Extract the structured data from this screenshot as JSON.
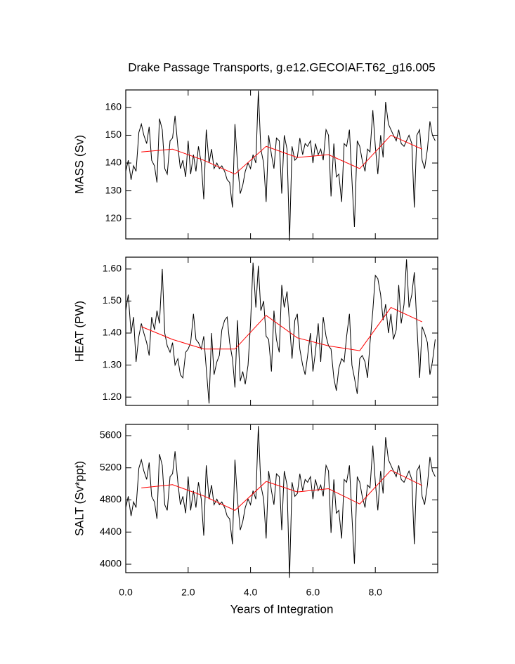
{
  "chart_data": [
    {
      "type": "line",
      "title": "Drake Passage Transports, g.e12.GECOIAF.T62_g16.005",
      "ylabel": "MASS (Sv)",
      "ylim": [
        112.7,
        166.3
      ],
      "yticks": [
        120,
        130,
        140,
        150,
        160
      ],
      "series": [
        {
          "color": "#000000",
          "x": [
            0,
            0.08,
            0.17,
            0.25,
            0.33,
            0.42,
            0.5,
            0.58,
            0.67,
            0.75,
            0.83,
            0.92,
            1,
            1.08,
            1.17,
            1.25,
            1.33,
            1.42,
            1.5,
            1.58,
            1.67,
            1.75,
            1.83,
            1.92,
            2,
            2.08,
            2.17,
            2.25,
            2.33,
            2.42,
            2.5,
            2.58,
            2.67,
            2.75,
            2.83,
            2.92,
            3,
            3.08,
            3.17,
            3.25,
            3.33,
            3.42,
            3.5,
            3.58,
            3.67,
            3.75,
            3.83,
            3.92,
            4,
            4.08,
            4.17,
            4.25,
            4.33,
            4.42,
            4.5,
            4.58,
            4.67,
            4.75,
            4.83,
            4.92,
            5,
            5.08,
            5.17,
            5.25,
            5.33,
            5.42,
            5.5,
            5.58,
            5.67,
            5.75,
            5.83,
            5.92,
            6,
            6.08,
            6.17,
            6.25,
            6.33,
            6.42,
            6.5,
            6.58,
            6.67,
            6.75,
            6.83,
            6.92,
            7,
            7.08,
            7.17,
            7.25,
            7.33,
            7.42,
            7.5,
            7.58,
            7.67,
            7.75,
            7.83,
            7.92,
            8,
            8.08,
            8.17,
            8.25,
            8.33,
            8.42,
            8.5,
            8.58,
            8.67,
            8.75,
            8.83,
            8.92,
            9,
            9.08,
            9.17,
            9.25,
            9.33,
            9.42,
            9.5,
            9.58,
            9.67,
            9.75,
            9.83,
            9.92
          ],
          "values": [
            137,
            141,
            134,
            139,
            137,
            151,
            154,
            150,
            147,
            153,
            141,
            139,
            133,
            156,
            152,
            138,
            136,
            148,
            149,
            157,
            146,
            138,
            141,
            135,
            148,
            136,
            143,
            137,
            146,
            140,
            127,
            152,
            140,
            145,
            138,
            140,
            138,
            139,
            137,
            134,
            133,
            124,
            154,
            140,
            129,
            132,
            137,
            140,
            138,
            143,
            140,
            166,
            145,
            140,
            126,
            150,
            143,
            138,
            149,
            148,
            129,
            150,
            145,
            112,
            146,
            141,
            142,
            149,
            143,
            147,
            146,
            148,
            140,
            147,
            143,
            145,
            141,
            152,
            150,
            128,
            147,
            135,
            136,
            126,
            147,
            146,
            152,
            134,
            117,
            148,
            146,
            141,
            137,
            145,
            144,
            159,
            146,
            136,
            150,
            142,
            162,
            154,
            152,
            150,
            148,
            152,
            147,
            146,
            148,
            150,
            147,
            124,
            150,
            152,
            141,
            138,
            145,
            155,
            150,
            148
          ]
        },
        {
          "color": "#ff0000",
          "x": [
            0.5,
            1.5,
            2.5,
            3.5,
            4.5,
            5.5,
            6.5,
            7.5,
            8.5,
            9.5
          ],
          "values": [
            144,
            145,
            141,
            136,
            146,
            142,
            143,
            138,
            150,
            145
          ]
        }
      ]
    },
    {
      "type": "line",
      "ylabel": "HEAT (PW)",
      "ylim": [
        1.174,
        1.637
      ],
      "yticks": [
        {
          "value": 1.2,
          "label": "1.20"
        },
        {
          "value": 1.3,
          "label": "1.30"
        },
        {
          "value": 1.4,
          "label": "1.40"
        },
        {
          "value": 1.5,
          "label": "1.50"
        },
        {
          "value": 1.6,
          "label": "1.60"
        }
      ],
      "series": [
        {
          "color": "#000000",
          "x": [
            0,
            0.08,
            0.17,
            0.25,
            0.33,
            0.42,
            0.5,
            0.58,
            0.67,
            0.75,
            0.83,
            0.92,
            1,
            1.08,
            1.17,
            1.25,
            1.33,
            1.42,
            1.5,
            1.58,
            1.67,
            1.75,
            1.83,
            1.92,
            2,
            2.08,
            2.17,
            2.25,
            2.33,
            2.42,
            2.5,
            2.58,
            2.67,
            2.75,
            2.83,
            2.92,
            3,
            3.08,
            3.17,
            3.25,
            3.33,
            3.42,
            3.5,
            3.58,
            3.67,
            3.75,
            3.83,
            3.92,
            4,
            4.08,
            4.17,
            4.25,
            4.33,
            4.42,
            4.5,
            4.58,
            4.67,
            4.75,
            4.83,
            4.92,
            5,
            5.08,
            5.17,
            5.25,
            5.33,
            5.42,
            5.5,
            5.58,
            5.67,
            5.75,
            5.83,
            5.92,
            6,
            6.08,
            6.17,
            6.25,
            6.33,
            6.42,
            6.5,
            6.58,
            6.67,
            6.75,
            6.83,
            6.92,
            7,
            7.08,
            7.17,
            7.25,
            7.33,
            7.42,
            7.5,
            7.58,
            7.67,
            7.75,
            7.83,
            7.92,
            8,
            8.08,
            8.17,
            8.25,
            8.33,
            8.42,
            8.5,
            8.58,
            8.67,
            8.75,
            8.83,
            8.92,
            9,
            9.08,
            9.17,
            9.25,
            9.33,
            9.42,
            9.5,
            9.58,
            9.67,
            9.75,
            9.83,
            9.92
          ],
          "values": [
            1.47,
            1.52,
            1.4,
            1.45,
            1.31,
            1.39,
            1.43,
            1.4,
            1.37,
            1.33,
            1.45,
            1.41,
            1.47,
            1.43,
            1.6,
            1.4,
            1.36,
            1.34,
            1.37,
            1.3,
            1.32,
            1.27,
            1.26,
            1.34,
            1.35,
            1.37,
            1.46,
            1.38,
            1.37,
            1.35,
            1.39,
            1.29,
            1.18,
            1.4,
            1.27,
            1.31,
            1.33,
            1.41,
            1.44,
            1.45,
            1.37,
            1.32,
            1.23,
            1.44,
            1.25,
            1.28,
            1.24,
            1.3,
            1.43,
            1.62,
            1.48,
            1.61,
            1.47,
            1.5,
            1.39,
            1.38,
            1.28,
            1.47,
            1.38,
            1.34,
            1.55,
            1.48,
            1.53,
            1.43,
            1.32,
            1.44,
            1.46,
            1.35,
            1.3,
            1.27,
            1.33,
            1.4,
            1.28,
            1.34,
            1.43,
            1.31,
            1.45,
            1.39,
            1.36,
            1.35,
            1.26,
            1.22,
            1.29,
            1.32,
            1.31,
            1.39,
            1.46,
            1.3,
            1.26,
            1.21,
            1.32,
            1.33,
            1.31,
            1.26,
            1.37,
            1.47,
            1.58,
            1.57,
            1.52,
            1.44,
            1.49,
            1.4,
            1.46,
            1.38,
            1.41,
            1.55,
            1.43,
            1.49,
            1.63,
            1.48,
            1.52,
            1.59,
            1.43,
            1.26,
            1.42,
            1.4,
            1.37,
            1.27,
            1.31,
            1.38
          ]
        },
        {
          "color": "#ff0000",
          "x": [
            0.5,
            1.5,
            2.5,
            3.5,
            4.5,
            5.5,
            6.5,
            7.5,
            8.5,
            9.5
          ],
          "values": [
            1.42,
            1.38,
            1.35,
            1.35,
            1.455,
            1.385,
            1.36,
            1.345,
            1.48,
            1.435
          ]
        }
      ]
    },
    {
      "type": "line",
      "ylabel": "SALT (Sv*ppt)",
      "xlabel": "Years of Integration",
      "xlim": [
        0,
        10
      ],
      "xticks": [
        {
          "value": 0,
          "label": "0.0"
        },
        {
          "value": 2,
          "label": "2.0"
        },
        {
          "value": 4,
          "label": "4.0"
        },
        {
          "value": 6,
          "label": "6.0"
        },
        {
          "value": 8,
          "label": "8.0"
        }
      ],
      "ylim": [
        3895,
        5740
      ],
      "yticks": [
        4000,
        4400,
        4800,
        5200,
        5600
      ],
      "series": [
        {
          "color": "#000000",
          "x": [
            0,
            0.08,
            0.17,
            0.25,
            0.33,
            0.42,
            0.5,
            0.58,
            0.67,
            0.75,
            0.83,
            0.92,
            1,
            1.08,
            1.17,
            1.25,
            1.33,
            1.42,
            1.5,
            1.58,
            1.67,
            1.75,
            1.83,
            1.92,
            2,
            2.08,
            2.17,
            2.25,
            2.33,
            2.42,
            2.5,
            2.58,
            2.67,
            2.75,
            2.83,
            2.92,
            3,
            3.08,
            3.17,
            3.25,
            3.33,
            3.42,
            3.5,
            3.58,
            3.67,
            3.75,
            3.83,
            3.92,
            4,
            4.08,
            4.17,
            4.25,
            4.33,
            4.42,
            4.5,
            4.58,
            4.67,
            4.75,
            4.83,
            4.92,
            5,
            5.08,
            5.17,
            5.25,
            5.33,
            5.42,
            5.5,
            5.58,
            5.67,
            5.75,
            5.83,
            5.92,
            6,
            6.08,
            6.17,
            6.25,
            6.33,
            6.42,
            6.5,
            6.58,
            6.67,
            6.75,
            6.83,
            6.92,
            7,
            7.08,
            7.17,
            7.25,
            7.33,
            7.42,
            7.5,
            7.58,
            7.67,
            7.75,
            7.83,
            7.92,
            8,
            8.08,
            8.17,
            8.25,
            8.33,
            8.42,
            8.5,
            8.58,
            8.67,
            8.75,
            8.83,
            8.92,
            9,
            9.08,
            9.17,
            9.25,
            9.33,
            9.42,
            9.5,
            9.58,
            9.67,
            9.75,
            9.83,
            9.92
          ],
          "values": [
            4705,
            4845,
            4600,
            4775,
            4705,
            5195,
            5300,
            5160,
            5055,
            5265,
            4845,
            4775,
            4565,
            5370,
            5230,
            4740,
            4670,
            5090,
            5125,
            5405,
            5020,
            4740,
            4845,
            4635,
            5090,
            4670,
            4915,
            4705,
            5020,
            4810,
            4355,
            5230,
            4810,
            4985,
            4740,
            4810,
            4740,
            4775,
            4705,
            4600,
            4565,
            4250,
            5300,
            4810,
            4425,
            4530,
            4705,
            4810,
            4740,
            4915,
            4810,
            5720,
            4985,
            4810,
            4320,
            5160,
            4915,
            4740,
            5125,
            5090,
            4425,
            5160,
            4985,
            3830,
            5020,
            4845,
            4880,
            5125,
            4915,
            5055,
            5020,
            5090,
            4810,
            5055,
            4915,
            4985,
            4845,
            5230,
            5160,
            4390,
            5055,
            4635,
            4670,
            4320,
            5055,
            5020,
            5230,
            4600,
            4005,
            5090,
            5020,
            4845,
            4705,
            4985,
            4950,
            5475,
            5020,
            4670,
            5160,
            4880,
            5580,
            5300,
            5230,
            5160,
            5090,
            5230,
            5055,
            5020,
            5090,
            5160,
            5055,
            4250,
            5160,
            5230,
            4845,
            4740,
            4985,
            5335,
            5160,
            5090
          ]
        },
        {
          "color": "#ff0000",
          "x": [
            0.5,
            1.5,
            2.5,
            3.5,
            4.5,
            5.5,
            6.5,
            7.5,
            8.5,
            9.5
          ],
          "values": [
            4950,
            4990,
            4850,
            4670,
            5030,
            4900,
            4940,
            4750,
            5170,
            4980
          ]
        }
      ]
    }
  ]
}
